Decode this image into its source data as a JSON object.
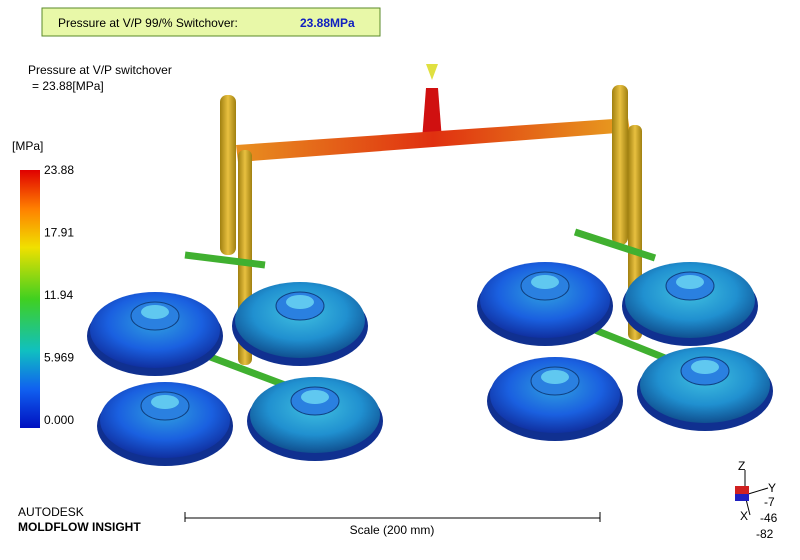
{
  "banner": {
    "label": "Pressure at V/P 99/% Switchover:",
    "value": "23.88MPa"
  },
  "result": {
    "title": "Pressure at V/P switchover",
    "value": "= 23.88[MPa]"
  },
  "legend": {
    "unit": "[MPa]",
    "ticks": [
      "23.88",
      "17.91",
      "11.94",
      "5.969",
      "0.000"
    ]
  },
  "branding": {
    "company": "AUTODESK",
    "product": "MOLDFLOW INSIGHT"
  },
  "scale": {
    "label": "Scale (200 mm)"
  },
  "triad": {
    "axes": [
      "Z",
      "Y",
      "X"
    ],
    "angles": [
      "-7",
      "-46",
      "-82"
    ]
  }
}
